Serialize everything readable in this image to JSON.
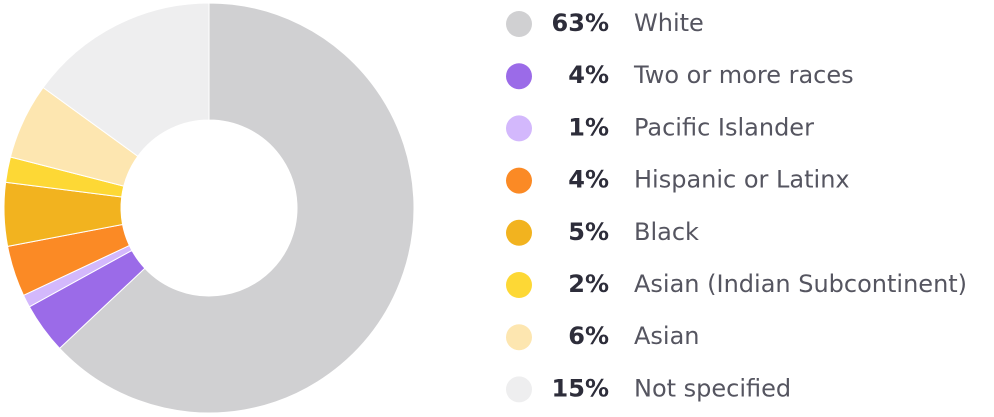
{
  "chart_data": {
    "type": "pie",
    "categories": [
      "White",
      "Two or more races",
      "Pacific Islander",
      "Hispanic or Latinx",
      "Black",
      "Asian (Indian Subcontinent)",
      "Asian",
      "Not specified"
    ],
    "values": [
      63,
      4,
      1,
      4,
      5,
      2,
      6,
      15
    ],
    "value_labels": [
      "63%",
      "4%",
      "1%",
      "4%",
      "5%",
      "2%",
      "6%",
      "15%"
    ],
    "colors": [
      "#d0d0d2",
      "#9b6be8",
      "#d3b8fc",
      "#fb8a25",
      "#f2b31f",
      "#fdd835",
      "#fde6b0",
      "#eeeeef"
    ],
    "donut": true
  }
}
